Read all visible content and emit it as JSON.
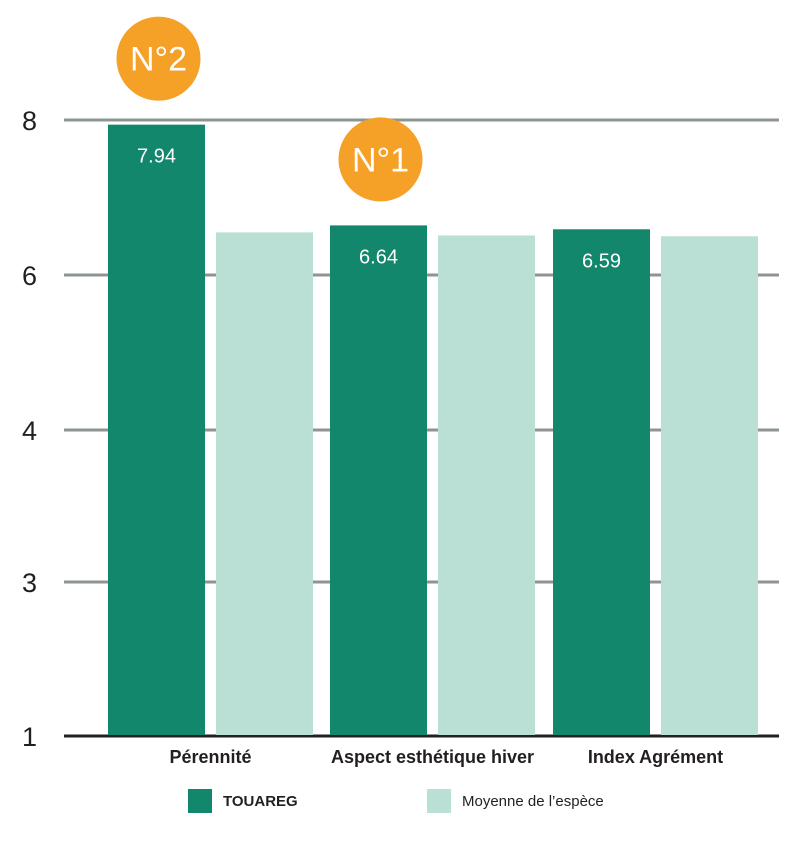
{
  "chart_data": {
    "type": "bar",
    "categories": [
      "Pérennité",
      "Aspect esthétique hiver",
      "Index Agrément"
    ],
    "series": [
      {
        "name": "TOUAREG",
        "values": [
          7.94,
          6.64,
          6.59
        ],
        "color": "#12876b",
        "labels": [
          "7.94",
          "6.64",
          "6.59"
        ]
      },
      {
        "name": "Moyenne de l’espèce",
        "values": [
          6.55,
          6.51,
          6.5
        ],
        "color": "#badfd5"
      }
    ],
    "yticks": [
      {
        "label": "8",
        "value": 8
      },
      {
        "label": "6",
        "value": 6
      },
      {
        "label": "4",
        "value": 4
      },
      {
        "label": "3",
        "value": 3
      },
      {
        "label": "1",
        "value": 1
      }
    ],
    "badges": [
      {
        "text": "N°2",
        "category_index": 0
      },
      {
        "text": "N°1",
        "category_index": 1
      }
    ],
    "badge_color": "#f5a027",
    "grid_color": "#8e9590",
    "legend": [
      "TOUAREG",
      "Moyenne de l’espèce"
    ]
  }
}
